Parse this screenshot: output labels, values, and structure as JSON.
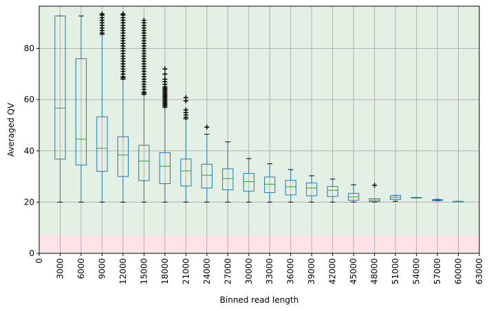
{
  "chart_data": {
    "type": "box",
    "xlabel": "Binned read length",
    "ylabel": "Averaged QV",
    "ylim": [
      0,
      96.5
    ],
    "yticks": [
      0,
      20,
      40,
      60,
      80
    ],
    "xtick_labels": [
      "0",
      "3000",
      "6000",
      "9000",
      "12000",
      "15000",
      "18000",
      "21000",
      "24000",
      "27000",
      "30000",
      "33000",
      "36000",
      "39000",
      "42000",
      "45000",
      "48000",
      "51000",
      "54000",
      "57000",
      "60000",
      "63000"
    ],
    "grid": true,
    "bands": [
      {
        "from": 0,
        "to": 7,
        "color": "#ffe3e6"
      },
      {
        "from": 7,
        "to": 96.5,
        "color": "#e4f0e3"
      }
    ],
    "colors": {
      "box": "#1f77b4",
      "median": "#2ca02c",
      "flier": "#000000",
      "grid": "#b0b0b0"
    },
    "boxes": [
      {
        "bin": "3000",
        "whislo": 20,
        "q1": 36.8,
        "med": 56.7,
        "q3": 92.7,
        "whishi": 92.7,
        "fliers": []
      },
      {
        "bin": "6000",
        "whislo": 20,
        "q1": 34.5,
        "med": 44.6,
        "q3": 76.0,
        "whishi": 92.7,
        "fliers": []
      },
      {
        "bin": "9000",
        "whislo": 20,
        "q1": 32.0,
        "med": 41.0,
        "q3": 53.3,
        "whishi": 85.5,
        "fliers": [
          86,
          87,
          88,
          89,
          90,
          91,
          92,
          93,
          93.5
        ]
      },
      {
        "bin": "12000",
        "whislo": 20,
        "q1": 30.0,
        "med": 38.4,
        "q3": 45.5,
        "whishi": 68.0,
        "fliers": [
          68.5,
          69,
          70,
          71,
          72,
          73,
          74,
          75,
          76,
          77,
          78,
          79,
          80,
          81,
          82,
          83,
          84,
          85,
          86,
          87,
          88,
          89,
          90,
          91,
          92,
          93,
          93.5
        ]
      },
      {
        "bin": "15000",
        "whislo": 20,
        "q1": 28.4,
        "med": 36.0,
        "q3": 42.2,
        "whishi": 62.0,
        "fliers": [
          62.5,
          63,
          64,
          65,
          66,
          67,
          68,
          69,
          70,
          71,
          72,
          73,
          74,
          75,
          76,
          77,
          78,
          79,
          80,
          81,
          82,
          83,
          84,
          85,
          86,
          87,
          88,
          89,
          90,
          91
        ]
      },
      {
        "bin": "18000",
        "whislo": 20,
        "q1": 27.2,
        "med": 34.0,
        "q3": 39.3,
        "whishi": 57.0,
        "fliers": [
          57.5,
          58,
          58.5,
          59,
          59.5,
          60,
          60.5,
          61,
          61.5,
          62,
          62.5,
          63,
          63.5,
          64,
          64.5,
          65,
          66,
          67,
          68,
          70,
          72
        ]
      },
      {
        "bin": "21000",
        "whislo": 20,
        "q1": 26.3,
        "med": 32.2,
        "q3": 36.8,
        "whishi": 52.5,
        "fliers": [
          53,
          54,
          55,
          56,
          59.5,
          60.8
        ]
      },
      {
        "bin": "24000",
        "whislo": 20,
        "q1": 25.5,
        "med": 30.5,
        "q3": 34.8,
        "whishi": 46.5,
        "fliers": [
          49.3
        ]
      },
      {
        "bin": "27000",
        "whislo": 20,
        "q1": 24.8,
        "med": 29.2,
        "q3": 33.0,
        "whishi": 43.5,
        "fliers": []
      },
      {
        "bin": "30000",
        "whislo": 20,
        "q1": 24.3,
        "med": 28.0,
        "q3": 31.2,
        "whishi": 37.0,
        "fliers": []
      },
      {
        "bin": "33000",
        "whislo": 20,
        "q1": 23.7,
        "med": 27.0,
        "q3": 29.8,
        "whishi": 35.0,
        "fliers": []
      },
      {
        "bin": "36000",
        "whislo": 20,
        "q1": 22.8,
        "med": 26.0,
        "q3": 28.5,
        "whishi": 32.7,
        "fliers": []
      },
      {
        "bin": "39000",
        "whislo": 20,
        "q1": 22.5,
        "med": 25.5,
        "q3": 27.5,
        "whishi": 30.3,
        "fliers": []
      },
      {
        "bin": "42000",
        "whislo": 20,
        "q1": 22.2,
        "med": 24.6,
        "q3": 26.1,
        "whishi": 29.0,
        "fliers": []
      },
      {
        "bin": "45000",
        "whislo": 20,
        "q1": 20.7,
        "med": 22.0,
        "q3": 23.4,
        "whishi": 26.8,
        "fliers": []
      },
      {
        "bin": "48000",
        "whislo": 20,
        "q1": 20.2,
        "med": 20.7,
        "q3": 21.3,
        "whishi": 21.3,
        "fliers": [
          26.6
        ]
      },
      {
        "bin": "51000",
        "whislo": 20.3,
        "q1": 21.0,
        "med": 21.8,
        "q3": 22.6,
        "whishi": 22.6,
        "fliers": []
      },
      {
        "bin": "54000",
        "whislo": 21.6,
        "q1": 21.6,
        "med": 21.7,
        "q3": 21.8,
        "whishi": 21.8,
        "fliers": []
      },
      {
        "bin": "57000",
        "whislo": 20.5,
        "q1": 20.6,
        "med": 20.8,
        "q3": 21.0,
        "whishi": 21.1,
        "fliers": []
      },
      {
        "bin": "60000",
        "whislo": 20.1,
        "q1": 20.1,
        "med": 20.2,
        "q3": 20.3,
        "whishi": 20.3,
        "fliers": []
      }
    ]
  }
}
